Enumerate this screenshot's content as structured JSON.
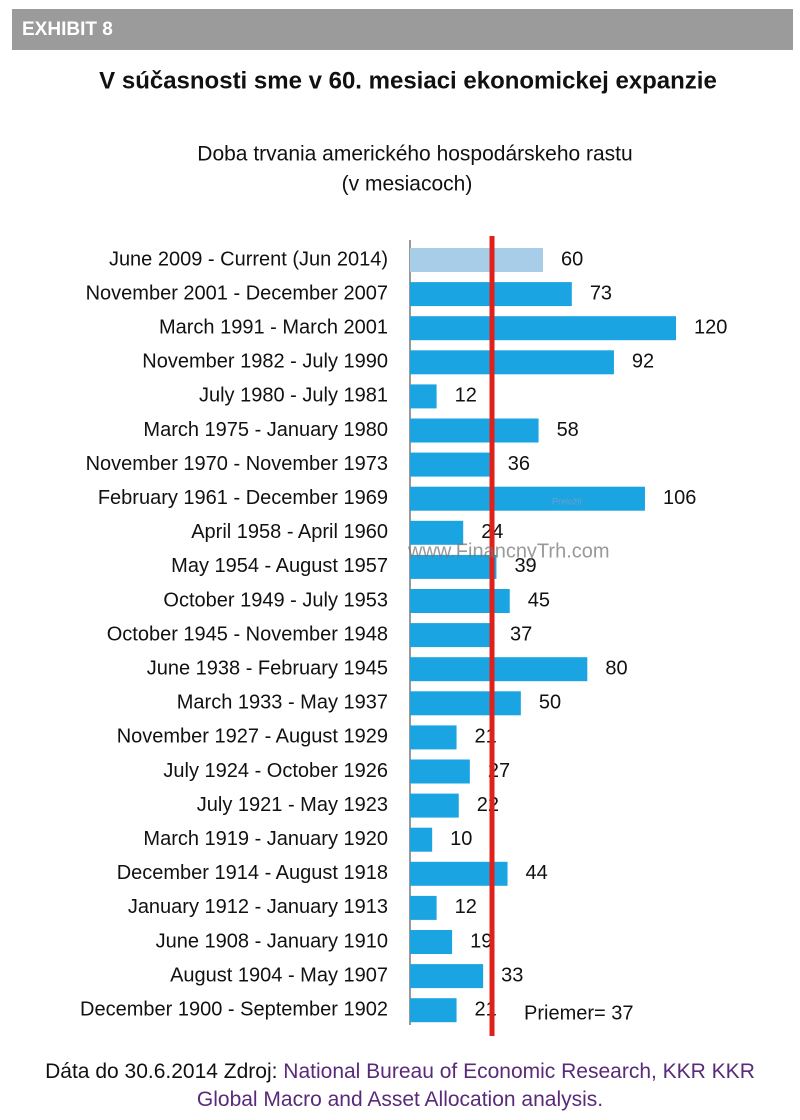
{
  "header": "EXHIBIT 8",
  "chart_data": {
    "type": "hbar",
    "title": "V súčasnosti sme v 60. mesiaci ekonomickej expanzie",
    "subtitle": [
      "Doba trvania amerického hospodárskeho rastu",
      "(v mesiacoch)"
    ],
    "categories": [
      "June 2009 - Current (Jun 2014)",
      "November 2001 - December 2007",
      "March 1991 - March 2001",
      "November 1982 - July 1990",
      "July 1980 - July 1981",
      "March 1975 - January 1980",
      "November 1970 - November 1973",
      "February 1961 - December 1969",
      "April 1958 - April 1960",
      "May 1954 - August 1957",
      "October 1949 - July 1953",
      "October 1945 - November 1948",
      "June 1938 - February 1945",
      "March 1933 - May 1937",
      "November 1927 - August 1929",
      "July 1924 - October 1926",
      "July 1921 - May 1923",
      "March 1919 - January 1920",
      "December 1914 - August 1918",
      "January 1912 - January 1913",
      "June 1908 - January 1910",
      "August 1904 - May 1907",
      "December 1900 - September 1902"
    ],
    "values": [
      60,
      73,
      120,
      92,
      12,
      58,
      36,
      106,
      24,
      39,
      45,
      37,
      80,
      50,
      21,
      27,
      22,
      10,
      44,
      12,
      19,
      33,
      21
    ],
    "colors": [
      "#a8cde8",
      "#1aa5e2",
      "#1aa5e2",
      "#1aa5e2",
      "#1aa5e2",
      "#1aa5e2",
      "#1aa5e2",
      "#1aa5e2",
      "#1aa5e2",
      "#1aa5e2",
      "#1aa5e2",
      "#1aa5e2",
      "#1aa5e2",
      "#1aa5e2",
      "#1aa5e2",
      "#1aa5e2",
      "#1aa5e2",
      "#1aa5e2",
      "#1aa5e2",
      "#1aa5e2",
      "#1aa5e2",
      "#1aa5e2",
      "#1aa5e2"
    ],
    "xlim": [
      0,
      120
    ],
    "reference_line": {
      "value": 37,
      "label": "Priemer= 37",
      "color": "#e0201b"
    },
    "watermark": "www.FinancnyTrh.com",
    "annotation": "Preložil",
    "note": {
      "prefix": "Dáta do 30.6.2014 Zdroj:",
      "source": "National Bureau of Economic Research, KKR KKR Global Macro and Asset Allocation analysis."
    }
  }
}
